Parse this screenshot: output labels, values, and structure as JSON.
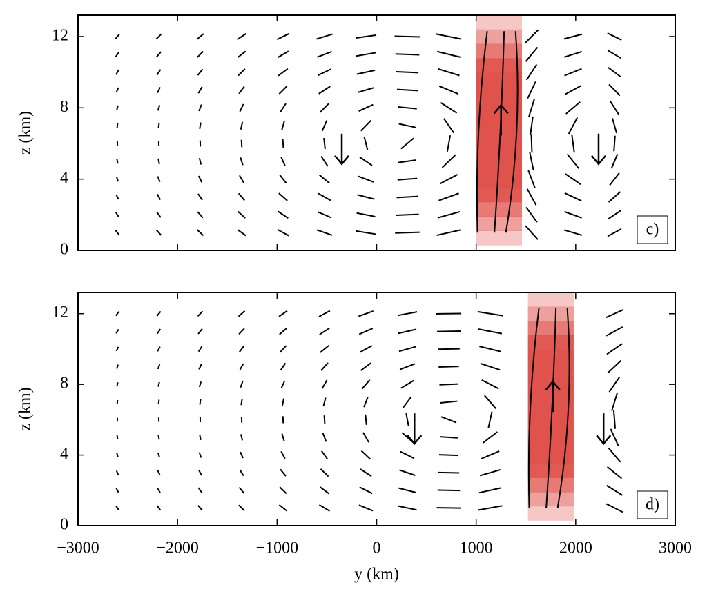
{
  "chart_data": [
    {
      "type": "quiver",
      "panel_label": "c)",
      "ylabel": "z (km)",
      "xlim": [
        -3000,
        3000
      ],
      "ylim": [
        0,
        13.2
      ],
      "xticks": [
        -3000,
        -2000,
        -1000,
        0,
        1000,
        2000,
        3000
      ],
      "yticks": [
        0,
        4,
        8,
        12
      ],
      "heating": {
        "y": [
          1000,
          1460
        ],
        "z": [
          0.3,
          13.2
        ],
        "color": "#e0524c"
      },
      "arrows": [
        {
          "y": -350,
          "z": 5.7,
          "dir": "down"
        },
        {
          "y": 1250,
          "z": 7.3,
          "dir": "up"
        },
        {
          "y": 2230,
          "z": 5.7,
          "dir": "down"
        }
      ]
    },
    {
      "type": "quiver",
      "panel_label": "d)",
      "ylabel": "z (km)",
      "xlabel": "y (km)",
      "xlim": [
        -3000,
        3000
      ],
      "ylim": [
        0,
        13.2
      ],
      "xticks": [
        {
          "value": -3000,
          "label": "−3000"
        },
        {
          "value": -2000,
          "label": "−2000"
        },
        {
          "value": -1000,
          "label": "−1000"
        },
        0,
        1000,
        2000,
        3000
      ],
      "yticks": [
        0,
        4,
        8,
        12
      ],
      "heating": {
        "y": [
          1520,
          1980
        ],
        "z": [
          0.3,
          13.2
        ],
        "color": "#e0524c"
      },
      "arrows": [
        {
          "y": 380,
          "z": 5.5,
          "dir": "down"
        },
        {
          "y": 1770,
          "z": 7.3,
          "dir": "up"
        },
        {
          "y": 2280,
          "z": 5.5,
          "dir": "down"
        }
      ]
    }
  ]
}
